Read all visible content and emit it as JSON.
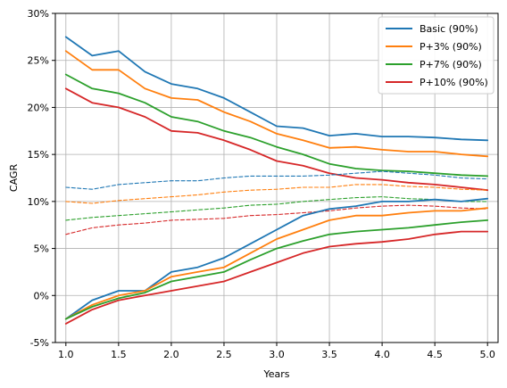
{
  "chart_data": {
    "type": "line",
    "xlabel": "Years",
    "ylabel": "CAGR",
    "xlim": [
      0.9,
      5.1
    ],
    "ylim": [
      -5,
      30
    ],
    "xticks": [
      1.0,
      1.5,
      2.0,
      2.5,
      3.0,
      3.5,
      4.0,
      4.5,
      5.0
    ],
    "xtick_labels": [
      "1.0",
      "1.5",
      "2.0",
      "2.5",
      "3.0",
      "3.5",
      "4.0",
      "4.5",
      "5.0"
    ],
    "yticks": [
      -5,
      0,
      5,
      10,
      15,
      20,
      25,
      30
    ],
    "ytick_labels": [
      "-5%",
      "0%",
      "5%",
      "10%",
      "15%",
      "20%",
      "25%",
      "30%"
    ],
    "grid": true,
    "legend_position": "top-right",
    "legend": [
      {
        "label": "Basic (90%)",
        "color": "#1f77b4"
      },
      {
        "label": "P+3% (90%)",
        "color": "#ff7f0e"
      },
      {
        "label": "P+7% (90%)",
        "color": "#2ca02c"
      },
      {
        "label": "P+10% (90%)",
        "color": "#d62728"
      }
    ],
    "x": [
      1.0,
      1.25,
      1.5,
      1.75,
      2.0,
      2.25,
      2.5,
      2.75,
      3.0,
      3.25,
      3.5,
      3.75,
      4.0,
      4.25,
      4.5,
      4.75,
      5.0
    ],
    "series": [
      {
        "name": "Basic (90%)",
        "color": "#1f77b4",
        "style": "solid",
        "values": [
          27.5,
          25.5,
          26.0,
          23.8,
          22.5,
          22.0,
          21.0,
          19.5,
          18.0,
          17.8,
          17.0,
          17.2,
          16.9,
          16.9,
          16.8,
          16.6,
          16.5
        ]
      },
      {
        "name": "P+3% (90%)",
        "color": "#ff7f0e",
        "style": "solid",
        "values": [
          26.0,
          24.0,
          24.0,
          22.0,
          21.0,
          20.8,
          19.5,
          18.5,
          17.2,
          16.5,
          15.7,
          15.8,
          15.5,
          15.3,
          15.3,
          15.0,
          14.8
        ]
      },
      {
        "name": "P+7% (90%)",
        "color": "#2ca02c",
        "style": "solid",
        "values": [
          23.5,
          22.0,
          21.5,
          20.5,
          19.0,
          18.5,
          17.5,
          16.8,
          15.8,
          15.0,
          14.0,
          13.5,
          13.3,
          13.2,
          13.0,
          12.8,
          12.7
        ]
      },
      {
        "name": "P+10% (90%)",
        "color": "#d62728",
        "style": "solid",
        "values": [
          22.0,
          20.5,
          20.0,
          19.0,
          17.5,
          17.3,
          16.5,
          15.5,
          14.3,
          13.8,
          13.0,
          12.5,
          12.3,
          12.0,
          11.8,
          11.5,
          11.2
        ]
      },
      {
        "name": "",
        "color": "#1f77b4",
        "style": "dashed",
        "values": [
          11.5,
          11.3,
          11.8,
          12.0,
          12.2,
          12.2,
          12.5,
          12.7,
          12.7,
          12.7,
          12.8,
          13.0,
          13.2,
          13.0,
          12.8,
          12.5,
          12.4
        ]
      },
      {
        "name": "",
        "color": "#ff7f0e",
        "style": "dashed",
        "values": [
          10.0,
          9.8,
          10.1,
          10.3,
          10.5,
          10.7,
          11.0,
          11.2,
          11.3,
          11.5,
          11.5,
          11.8,
          11.8,
          11.6,
          11.5,
          11.3,
          11.2
        ]
      },
      {
        "name": "",
        "color": "#2ca02c",
        "style": "dashed",
        "values": [
          8.0,
          8.3,
          8.5,
          8.7,
          8.9,
          9.1,
          9.3,
          9.6,
          9.7,
          10.0,
          10.2,
          10.4,
          10.5,
          10.3,
          10.2,
          10.0,
          10.0
        ]
      },
      {
        "name": "",
        "color": "#d62728",
        "style": "dashed",
        "values": [
          6.5,
          7.2,
          7.5,
          7.7,
          8.0,
          8.1,
          8.2,
          8.5,
          8.6,
          8.8,
          9.0,
          9.3,
          9.5,
          9.6,
          9.5,
          9.3,
          9.2
        ]
      },
      {
        "name": "",
        "color": "#1f77b4",
        "style": "solid",
        "values": [
          -2.5,
          -0.5,
          0.5,
          0.5,
          2.5,
          3.0,
          4.0,
          5.5,
          7.0,
          8.5,
          9.2,
          9.5,
          10.0,
          10.0,
          10.2,
          10.0,
          10.3
        ]
      },
      {
        "name": "",
        "color": "#ff7f0e",
        "style": "solid",
        "values": [
          -2.5,
          -1.0,
          0.0,
          0.5,
          2.0,
          2.5,
          3.0,
          4.5,
          6.0,
          7.0,
          8.0,
          8.5,
          8.5,
          8.8,
          9.0,
          9.0,
          9.3
        ]
      },
      {
        "name": "",
        "color": "#2ca02c",
        "style": "solid",
        "values": [
          -2.5,
          -1.2,
          -0.3,
          0.3,
          1.5,
          2.0,
          2.5,
          3.8,
          5.0,
          5.8,
          6.5,
          6.8,
          7.0,
          7.2,
          7.5,
          7.8,
          8.0
        ]
      },
      {
        "name": "",
        "color": "#d62728",
        "style": "solid",
        "values": [
          -3.0,
          -1.5,
          -0.5,
          0.0,
          0.5,
          1.0,
          1.5,
          2.5,
          3.5,
          4.5,
          5.2,
          5.5,
          5.7,
          6.0,
          6.5,
          6.8,
          6.8
        ]
      }
    ]
  }
}
